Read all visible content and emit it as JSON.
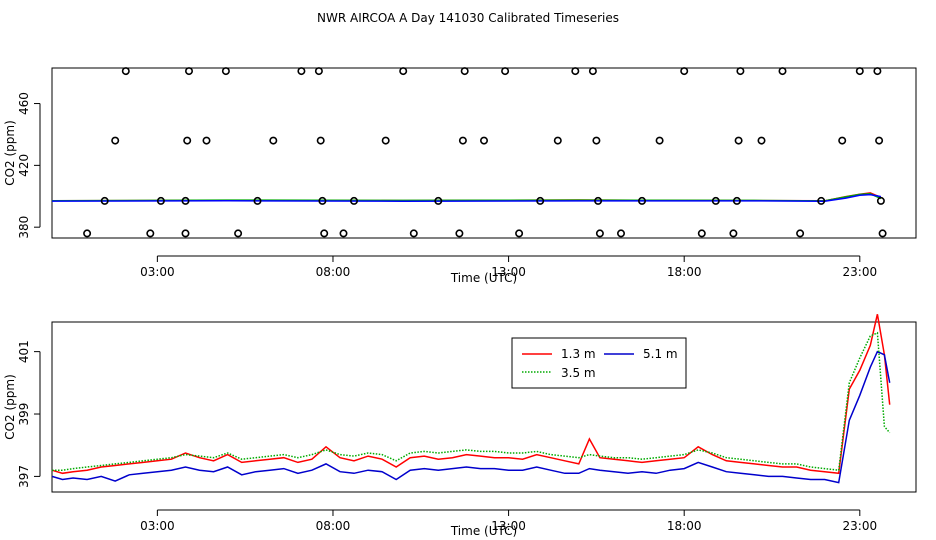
{
  "figure": {
    "title": "NWR AIRCOA A  Day 141030  Calibrated Timeseries"
  },
  "chart_data": [
    {
      "type": "scatter",
      "xlabel": "Time (UTC)",
      "ylabel": "CO2 (ppm)",
      "xlim": [
        0,
        24.6
      ],
      "ylim": [
        373,
        483
      ],
      "x_ticks": [
        3,
        8,
        13,
        18,
        23
      ],
      "x_tick_labels": [
        "03:00",
        "08:00",
        "13:00",
        "18:00",
        "23:00"
      ],
      "y_ticks": [
        380,
        420,
        460
      ],
      "y_tick_labels": [
        "380",
        "420",
        "460"
      ],
      "grid": false,
      "reference_points": {
        "name_hidden": true,
        "points": [
          [
            1.0,
            376
          ],
          [
            1.5,
            397
          ],
          [
            1.8,
            436
          ],
          [
            2.1,
            481
          ],
          [
            2.8,
            376
          ],
          [
            3.1,
            397
          ],
          [
            3.8,
            376
          ],
          [
            3.8,
            397
          ],
          [
            3.85,
            436
          ],
          [
            3.9,
            481
          ],
          [
            4.4,
            436
          ],
          [
            4.95,
            481
          ],
          [
            5.3,
            376
          ],
          [
            5.85,
            397
          ],
          [
            6.3,
            436
          ],
          [
            7.1,
            481
          ],
          [
            7.6,
            481
          ],
          [
            7.65,
            436
          ],
          [
            7.7,
            397
          ],
          [
            7.75,
            376
          ],
          [
            8.3,
            376
          ],
          [
            8.6,
            397
          ],
          [
            9.5,
            436
          ],
          [
            10.0,
            481
          ],
          [
            10.3,
            376
          ],
          [
            11.0,
            397
          ],
          [
            11.6,
            376
          ],
          [
            11.7,
            436
          ],
          [
            11.75,
            481
          ],
          [
            12.3,
            436
          ],
          [
            12.9,
            481
          ],
          [
            13.3,
            376
          ],
          [
            13.9,
            397
          ],
          [
            14.4,
            436
          ],
          [
            14.9,
            481
          ],
          [
            15.4,
            481
          ],
          [
            15.5,
            436
          ],
          [
            15.55,
            397
          ],
          [
            15.6,
            376
          ],
          [
            16.2,
            376
          ],
          [
            16.8,
            397
          ],
          [
            17.3,
            436
          ],
          [
            18.0,
            481
          ],
          [
            18.5,
            376
          ],
          [
            18.9,
            397
          ],
          [
            19.4,
            376
          ],
          [
            19.5,
            397
          ],
          [
            19.55,
            436
          ],
          [
            19.6,
            481
          ],
          [
            20.2,
            436
          ],
          [
            20.8,
            481
          ],
          [
            21.3,
            376
          ],
          [
            21.9,
            397
          ],
          [
            22.5,
            436
          ],
          [
            23.0,
            481
          ],
          [
            23.5,
            481
          ],
          [
            23.55,
            436
          ],
          [
            23.6,
            397
          ],
          [
            23.65,
            376
          ]
        ]
      },
      "line_series": [
        {
          "color": "#00a0a0",
          "x": [
            0.0,
            5.0,
            10.0,
            15.0,
            20.0,
            22.0,
            22.6,
            23.0,
            23.3,
            23.6
          ],
          "y": [
            397,
            397.2,
            397.1,
            397.3,
            397.1,
            397.0,
            399.5,
            401.0,
            401.5,
            399.5
          ]
        },
        {
          "color": "#ff0000",
          "x": [
            0.0,
            5.0,
            10.0,
            15.0,
            20.0,
            22.0,
            22.6,
            23.0,
            23.3,
            23.6
          ],
          "y": [
            397.1,
            397.4,
            397.2,
            397.6,
            397.2,
            397.1,
            399.8,
            401.3,
            402.2,
            399.3
          ]
        },
        {
          "color": "#00aa00",
          "x": [
            0.0,
            5.0,
            10.0,
            15.0,
            20.0,
            22.0,
            22.6,
            23.0,
            23.3,
            23.6
          ],
          "y": [
            397.1,
            397.5,
            397.3,
            397.5,
            397.3,
            397.0,
            399.6,
            401.2,
            401.6,
            398.5
          ]
        },
        {
          "color": "#0000ff",
          "x": [
            0.0,
            5.0,
            10.0,
            15.0,
            20.0,
            22.0,
            22.6,
            23.0,
            23.3,
            23.6
          ],
          "y": [
            396.9,
            397.1,
            396.8,
            397.0,
            397.0,
            396.8,
            398.8,
            400.6,
            401.1,
            399.8
          ]
        }
      ],
      "marker_color": "#000000"
    },
    {
      "type": "line",
      "xlabel": "Time (UTC)",
      "ylabel": "CO2 (ppm)",
      "xlim": [
        0,
        24.6
      ],
      "ylim": [
        396.5,
        401.95
      ],
      "x_ticks": [
        3,
        8,
        13,
        18,
        23
      ],
      "x_tick_labels": [
        "03:00",
        "08:00",
        "13:00",
        "18:00",
        "23:00"
      ],
      "y_ticks": [
        397,
        399,
        401
      ],
      "y_tick_labels": [
        "397",
        "399",
        "401"
      ],
      "grid": false,
      "legend": {
        "placement": "top-right-inside",
        "entries": [
          "1.3 m",
          "5.1 m",
          "3.5 m"
        ]
      },
      "series": [
        {
          "name": "1.3 m",
          "color": "#ff0000",
          "dash": "solid",
          "x": [
            0.0,
            0.3,
            0.6,
            1.0,
            1.4,
            1.8,
            2.2,
            2.6,
            3.0,
            3.4,
            3.8,
            4.2,
            4.6,
            5.0,
            5.4,
            5.8,
            6.2,
            6.6,
            7.0,
            7.4,
            7.8,
            8.2,
            8.6,
            9.0,
            9.4,
            9.8,
            10.2,
            10.6,
            11.0,
            11.4,
            11.8,
            12.2,
            12.6,
            13.0,
            13.4,
            13.8,
            14.2,
            14.6,
            15.0,
            15.3,
            15.6,
            16.0,
            16.4,
            16.8,
            17.2,
            17.6,
            18.0,
            18.4,
            18.8,
            19.2,
            19.6,
            20.0,
            20.4,
            20.8,
            21.2,
            21.6,
            22.0,
            22.4,
            22.7,
            23.0,
            23.3,
            23.5,
            23.7,
            23.85
          ],
          "y": [
            397.2,
            397.1,
            397.15,
            397.2,
            397.3,
            397.35,
            397.4,
            397.45,
            397.5,
            397.55,
            397.75,
            397.6,
            397.5,
            397.7,
            397.45,
            397.5,
            397.55,
            397.6,
            397.45,
            397.55,
            397.95,
            397.6,
            397.5,
            397.65,
            397.55,
            397.3,
            397.6,
            397.65,
            397.55,
            397.6,
            397.7,
            397.65,
            397.6,
            397.6,
            397.55,
            397.7,
            397.6,
            397.5,
            397.4,
            398.2,
            397.6,
            397.55,
            397.5,
            397.45,
            397.5,
            397.55,
            397.6,
            397.95,
            397.7,
            397.5,
            397.45,
            397.4,
            397.35,
            397.3,
            397.3,
            397.2,
            397.15,
            397.1,
            399.8,
            400.4,
            401.2,
            402.2,
            400.9,
            399.3
          ]
        },
        {
          "name": "5.1 m",
          "color": "#0000cc",
          "dash": "solid",
          "x": [
            0.0,
            0.3,
            0.6,
            1.0,
            1.4,
            1.8,
            2.2,
            2.6,
            3.0,
            3.4,
            3.8,
            4.2,
            4.6,
            5.0,
            5.4,
            5.8,
            6.2,
            6.6,
            7.0,
            7.4,
            7.8,
            8.2,
            8.6,
            9.0,
            9.4,
            9.8,
            10.2,
            10.6,
            11.0,
            11.4,
            11.8,
            12.2,
            12.6,
            13.0,
            13.4,
            13.8,
            14.2,
            14.6,
            15.0,
            15.3,
            15.6,
            16.0,
            16.4,
            16.8,
            17.2,
            17.6,
            18.0,
            18.4,
            18.8,
            19.2,
            19.6,
            20.0,
            20.4,
            20.8,
            21.2,
            21.6,
            22.0,
            22.4,
            22.7,
            23.0,
            23.3,
            23.5,
            23.7,
            23.85
          ],
          "y": [
            397.0,
            396.9,
            396.95,
            396.9,
            397.0,
            396.85,
            397.05,
            397.1,
            397.15,
            397.2,
            397.3,
            397.2,
            397.15,
            397.3,
            397.05,
            397.15,
            397.2,
            397.25,
            397.1,
            397.2,
            397.4,
            397.15,
            397.1,
            397.2,
            397.15,
            396.9,
            397.2,
            397.25,
            397.2,
            397.25,
            397.3,
            397.25,
            397.25,
            397.2,
            397.2,
            397.3,
            397.2,
            397.1,
            397.1,
            397.25,
            397.2,
            397.15,
            397.1,
            397.15,
            397.1,
            397.2,
            397.25,
            397.45,
            397.3,
            397.15,
            397.1,
            397.05,
            397.0,
            397.0,
            396.95,
            396.9,
            396.9,
            396.8,
            398.8,
            399.6,
            400.5,
            401.0,
            400.9,
            400.0
          ]
        },
        {
          "name": "3.5 m",
          "color": "#00aa00",
          "dash": "dotted",
          "x": [
            0.0,
            0.3,
            0.6,
            1.0,
            1.4,
            1.8,
            2.2,
            2.6,
            3.0,
            3.4,
            3.8,
            4.2,
            4.6,
            5.0,
            5.4,
            5.8,
            6.2,
            6.6,
            7.0,
            7.4,
            7.8,
            8.2,
            8.6,
            9.0,
            9.4,
            9.8,
            10.2,
            10.6,
            11.0,
            11.4,
            11.8,
            12.2,
            12.6,
            13.0,
            13.4,
            13.8,
            14.2,
            14.6,
            15.0,
            15.3,
            15.6,
            16.0,
            16.4,
            16.8,
            17.2,
            17.6,
            18.0,
            18.4,
            18.8,
            19.2,
            19.6,
            20.0,
            20.4,
            20.8,
            21.2,
            21.6,
            22.0,
            22.4,
            22.7,
            23.0,
            23.3,
            23.5,
            23.7,
            23.85
          ],
          "y": [
            397.2,
            397.2,
            397.25,
            397.3,
            397.35,
            397.4,
            397.45,
            397.5,
            397.55,
            397.6,
            397.7,
            397.65,
            397.6,
            397.75,
            397.55,
            397.6,
            397.65,
            397.7,
            397.6,
            397.7,
            397.85,
            397.7,
            397.65,
            397.75,
            397.7,
            397.5,
            397.75,
            397.8,
            397.75,
            397.8,
            397.85,
            397.8,
            397.8,
            397.75,
            397.75,
            397.8,
            397.7,
            397.65,
            397.6,
            397.7,
            397.65,
            397.6,
            397.6,
            397.55,
            397.6,
            397.65,
            397.7,
            397.85,
            397.75,
            397.6,
            397.55,
            397.5,
            397.45,
            397.4,
            397.4,
            397.3,
            397.25,
            397.2,
            400.0,
            400.8,
            401.5,
            401.6,
            398.6,
            398.4
          ]
        }
      ]
    }
  ]
}
